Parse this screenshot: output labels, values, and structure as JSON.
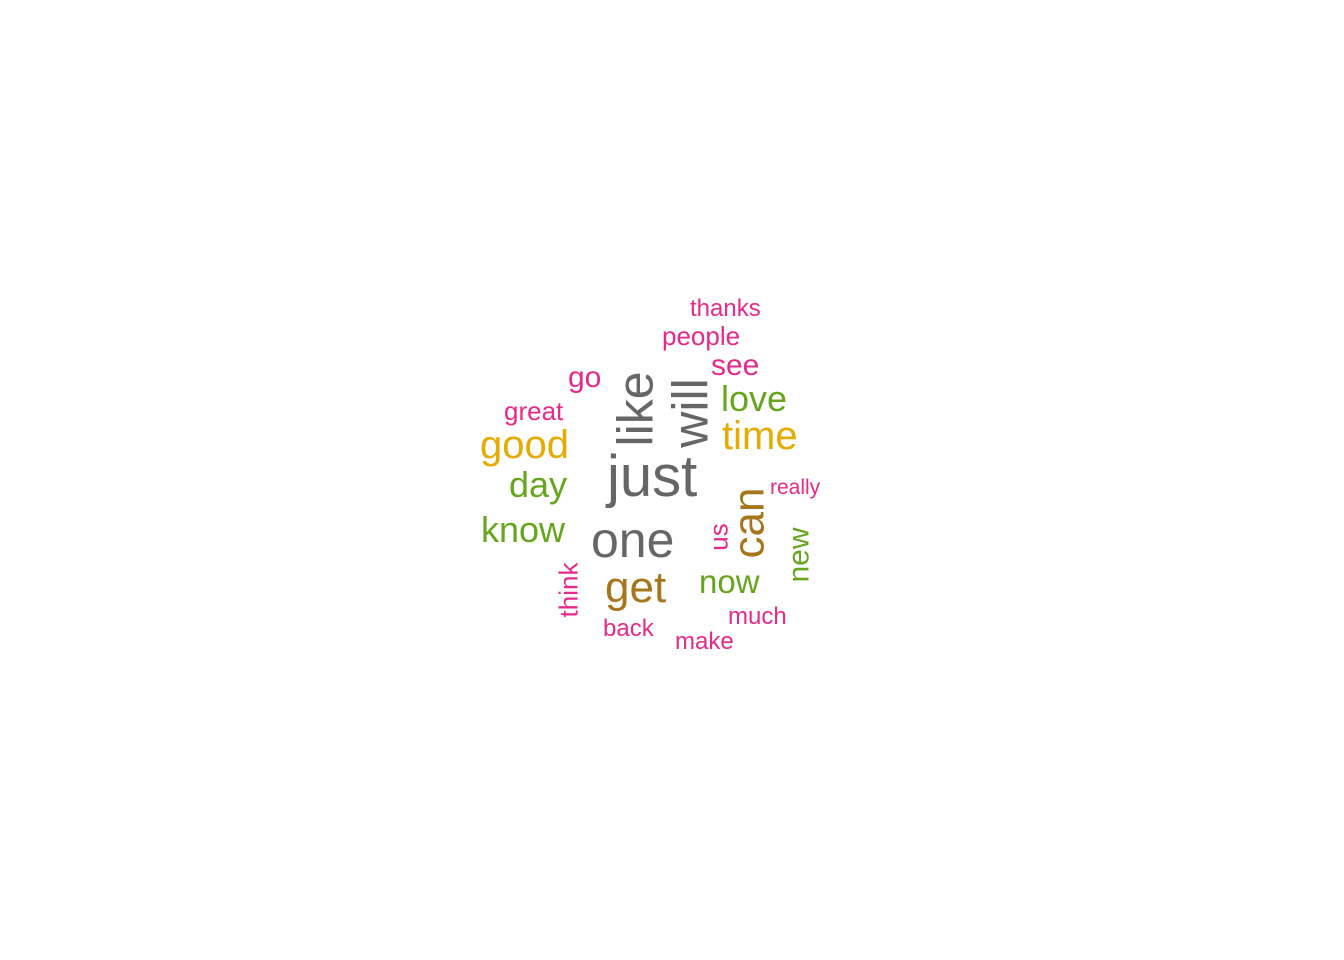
{
  "palette": {
    "gray": "#666666",
    "brown": "#a6761d",
    "gold": "#e6ab02",
    "green": "#66a61e",
    "pink": "#e7298a"
  },
  "words": {
    "just": "just",
    "like": "like",
    "will": "will",
    "one": "one",
    "get": "get",
    "can": "can",
    "good": "good",
    "time": "time",
    "love": "love",
    "day": "day",
    "know": "know",
    "now": "now",
    "new": "new",
    "see": "see",
    "people": "people",
    "thanks": "thanks",
    "go": "go",
    "great": "great",
    "really": "really",
    "us": "us",
    "think": "think",
    "back": "back",
    "make": "make",
    "much": "much"
  }
}
